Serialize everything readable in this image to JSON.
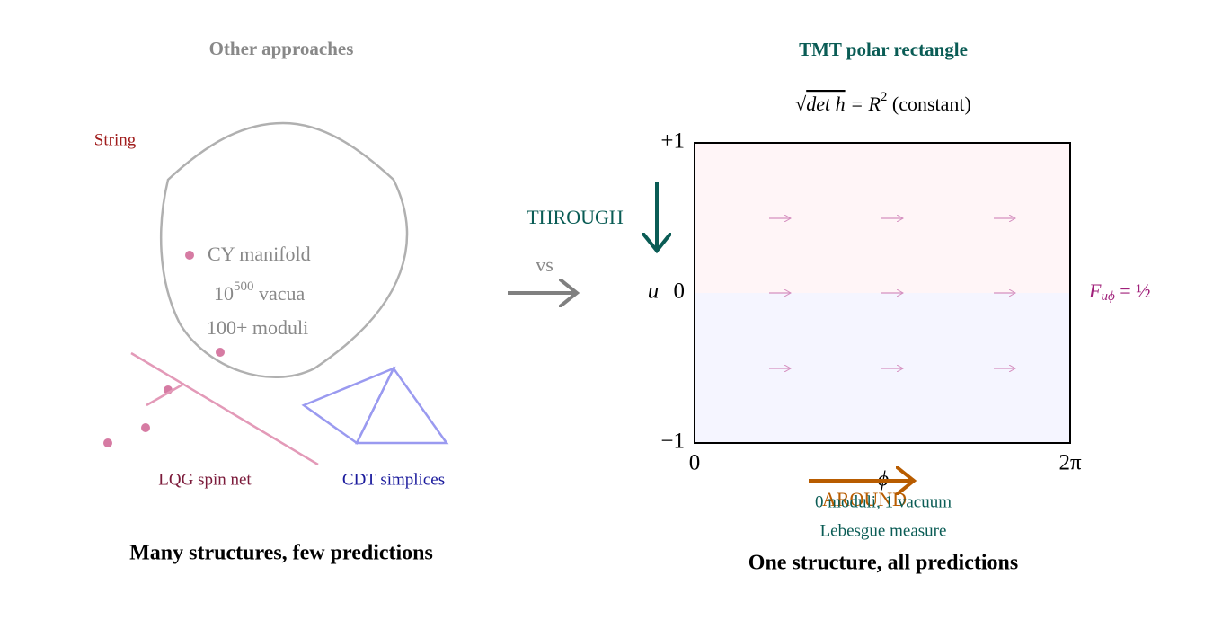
{
  "left": {
    "title": "Other approaches",
    "string_label": "String",
    "cy": "CY manifold",
    "vacua": {
      "base": "10",
      "exp": "500",
      "rest": " vacua"
    },
    "moduli": "100+ moduli",
    "lqg_label": "LQG spin net",
    "cdt_label": "CDT simplices",
    "caption": "Many structures, few predictions"
  },
  "middle": {
    "through": "THROUGH",
    "vs": "vs",
    "around": "AROUND"
  },
  "right": {
    "title": "TMT polar rectangle",
    "formula": {
      "root": "√",
      "det": "det h",
      "eq": " = R",
      "exp": "2",
      "note": " (constant)"
    },
    "y_ticks": [
      "+1",
      "0",
      "−1"
    ],
    "y_label": "u",
    "x_ticks": [
      "0",
      "2π"
    ],
    "x_label": "ϕ",
    "field": {
      "symbol": "F",
      "sub": "uϕ",
      "eq": " = ½"
    },
    "notes": [
      "0 moduli, 1 vacuum",
      "Lebesgue measure"
    ],
    "caption": "One structure, all predictions"
  }
}
